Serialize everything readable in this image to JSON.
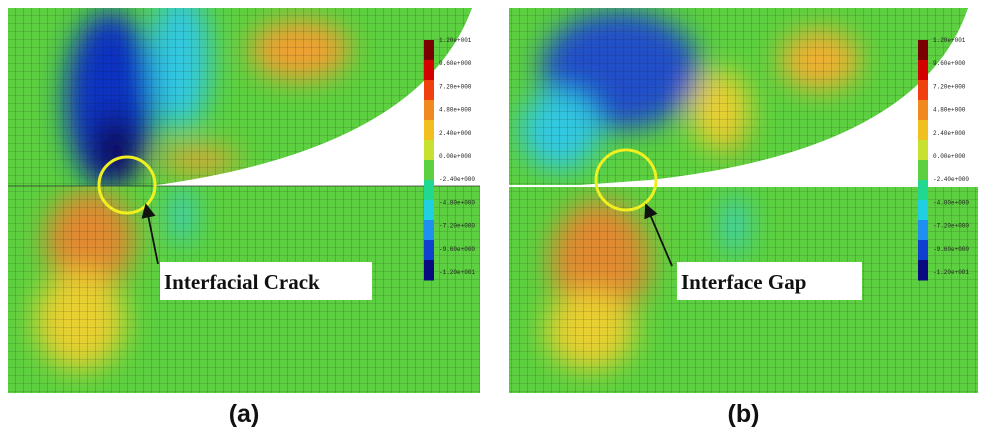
{
  "panels": [
    {
      "caption": "(a)",
      "annotation": "Interfacial Crack",
      "colorbar_labels": [
        "1.20e+001",
        "9.60e+000",
        "7.20e+000",
        "4.80e+000",
        "2.40e+000",
        "0.00e+000",
        "-2.40e+000",
        "-4.80e+000",
        "-7.20e+000",
        "-9.60e+000",
        "-1.20e+001"
      ]
    },
    {
      "caption": "(b)",
      "annotation": "Interface Gap",
      "colorbar_labels": [
        "1.20e+001",
        "9.60e+000",
        "7.20e+000",
        "4.80e+000",
        "2.40e+000",
        "0.00e+000",
        "-2.40e+000",
        "-4.80e+000",
        "-7.20e+000",
        "-9.60e+000",
        "-1.20e+001"
      ]
    }
  ]
}
